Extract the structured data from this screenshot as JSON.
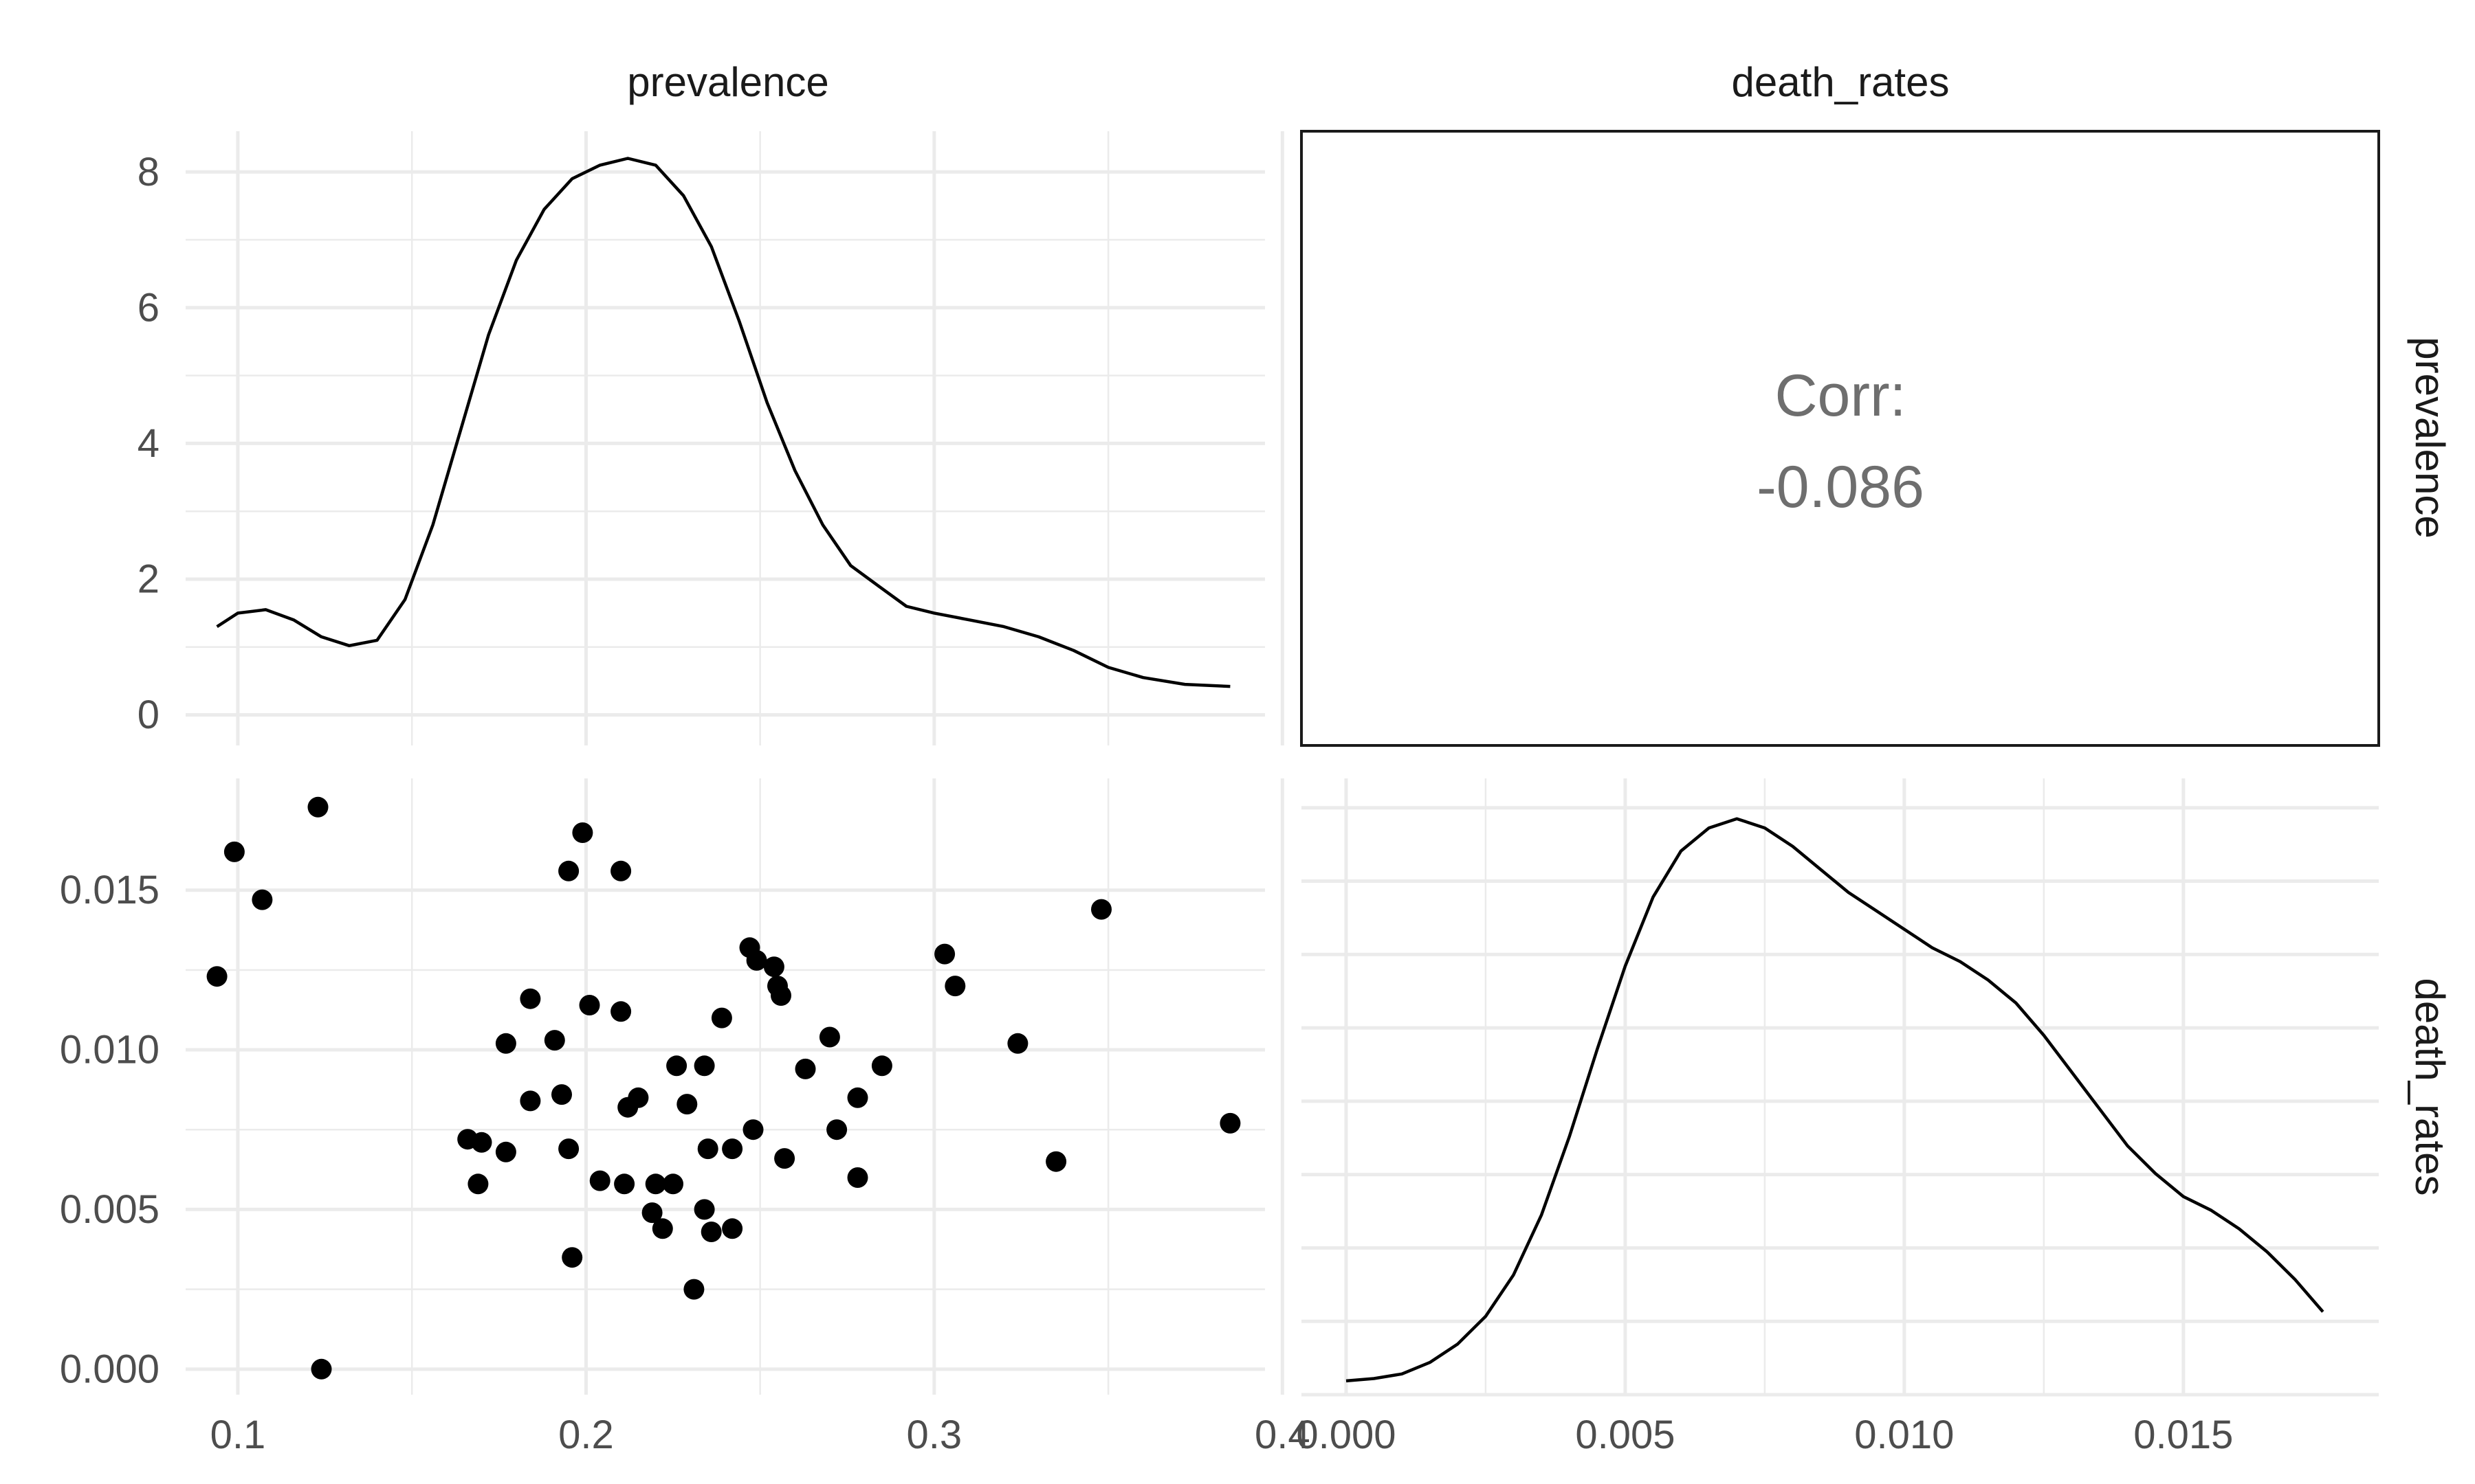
{
  "chart_data": {
    "type": "scatter-matrix",
    "variables": [
      "prevalence",
      "death_rates"
    ],
    "strips": {
      "top": [
        "prevalence",
        "death_rates"
      ],
      "right": [
        "prevalence",
        "death_rates"
      ]
    },
    "axes": {
      "prevalence": {
        "range": [
          0.085,
          0.395
        ],
        "ticks": [
          0.1,
          0.2,
          0.3,
          0.4
        ],
        "tick_labels": [
          "0.1",
          "0.2",
          "0.3",
          "0.4"
        ]
      },
      "death_rates": {
        "range": [
          -0.0008,
          0.0185
        ],
        "ticks": [
          0.0,
          0.005,
          0.01,
          0.015
        ],
        "tick_labels": [
          "0.000",
          "0.005",
          "0.010",
          "0.015"
        ]
      },
      "density_y": {
        "range": [
          -0.45,
          8.6
        ],
        "ticks": [
          0,
          2,
          4,
          6,
          8
        ],
        "tick_labels": [
          "0",
          "2",
          "4",
          "6",
          "8"
        ]
      }
    },
    "panels": [
      {
        "id": "prevalence-density",
        "type": "density",
        "variable": "prevalence",
        "x": [
          0.094,
          0.1,
          0.108,
          0.116,
          0.124,
          0.132,
          0.14,
          0.148,
          0.156,
          0.164,
          0.172,
          0.18,
          0.188,
          0.196,
          0.204,
          0.212,
          0.22,
          0.228,
          0.236,
          0.244,
          0.252,
          0.26,
          0.268,
          0.276,
          0.284,
          0.292,
          0.3,
          0.31,
          0.32,
          0.33,
          0.34,
          0.35,
          0.36,
          0.372,
          0.385
        ],
        "y": [
          1.3,
          1.5,
          1.55,
          1.4,
          1.15,
          1.02,
          1.1,
          1.7,
          2.8,
          4.2,
          5.6,
          6.7,
          7.45,
          7.9,
          8.1,
          8.2,
          8.1,
          7.65,
          6.9,
          5.8,
          4.6,
          3.6,
          2.8,
          2.2,
          1.9,
          1.6,
          1.5,
          1.4,
          1.3,
          1.15,
          0.95,
          0.7,
          0.55,
          0.45,
          0.42
        ]
      },
      {
        "id": "correlation",
        "type": "text",
        "label": "Corr:",
        "value": "-0.086"
      },
      {
        "id": "scatter",
        "type": "scatter",
        "x_var": "prevalence",
        "y_var": "death_rates",
        "points": [
          [
            0.123,
            0.0176
          ],
          [
            0.099,
            0.0162
          ],
          [
            0.107,
            0.0147
          ],
          [
            0.094,
            0.0123
          ],
          [
            0.124,
            0.0
          ],
          [
            0.199,
            0.0168
          ],
          [
            0.195,
            0.0156
          ],
          [
            0.21,
            0.0156
          ],
          [
            0.348,
            0.0144
          ],
          [
            0.247,
            0.0132
          ],
          [
            0.249,
            0.0128
          ],
          [
            0.254,
            0.0126
          ],
          [
            0.255,
            0.012
          ],
          [
            0.256,
            0.0117
          ],
          [
            0.303,
            0.013
          ],
          [
            0.306,
            0.012
          ],
          [
            0.184,
            0.0116
          ],
          [
            0.201,
            0.0114
          ],
          [
            0.21,
            0.0112
          ],
          [
            0.239,
            0.011
          ],
          [
            0.27,
            0.0104
          ],
          [
            0.191,
            0.0103
          ],
          [
            0.177,
            0.0102
          ],
          [
            0.324,
            0.0102
          ],
          [
            0.226,
            0.0095
          ],
          [
            0.234,
            0.0095
          ],
          [
            0.285,
            0.0095
          ],
          [
            0.263,
            0.0094
          ],
          [
            0.193,
            0.0086
          ],
          [
            0.278,
            0.0085
          ],
          [
            0.184,
            0.0084
          ],
          [
            0.215,
            0.0085
          ],
          [
            0.212,
            0.0082
          ],
          [
            0.229,
            0.0083
          ],
          [
            0.385,
            0.0077
          ],
          [
            0.248,
            0.0075
          ],
          [
            0.272,
            0.0075
          ],
          [
            0.166,
            0.0072
          ],
          [
            0.17,
            0.0071
          ],
          [
            0.177,
            0.0068
          ],
          [
            0.195,
            0.0069
          ],
          [
            0.235,
            0.0069
          ],
          [
            0.242,
            0.0069
          ],
          [
            0.257,
            0.0066
          ],
          [
            0.335,
            0.0065
          ],
          [
            0.169,
            0.0058
          ],
          [
            0.204,
            0.0059
          ],
          [
            0.211,
            0.0058
          ],
          [
            0.22,
            0.0058
          ],
          [
            0.225,
            0.0058
          ],
          [
            0.278,
            0.006
          ],
          [
            0.219,
            0.0049
          ],
          [
            0.234,
            0.005
          ],
          [
            0.222,
            0.0044
          ],
          [
            0.236,
            0.0043
          ],
          [
            0.242,
            0.0044
          ],
          [
            0.196,
            0.0035
          ],
          [
            0.231,
            0.0025
          ]
        ]
      },
      {
        "id": "death-rates-density",
        "type": "density",
        "variable": "death_rates",
        "x": [
          0.0,
          0.0005,
          0.001,
          0.0015,
          0.002,
          0.0025,
          0.003,
          0.0035,
          0.004,
          0.0045,
          0.005,
          0.0055,
          0.006,
          0.0065,
          0.007,
          0.0075,
          0.008,
          0.0085,
          0.009,
          0.0095,
          0.01,
          0.0105,
          0.011,
          0.0115,
          0.012,
          0.0125,
          0.013,
          0.0135,
          0.014,
          0.0145,
          0.015,
          0.0155,
          0.016,
          0.0165,
          0.017,
          0.0175
        ],
        "y": [
          3,
          3.5,
          4.5,
          7,
          11,
          17,
          26,
          39,
          56,
          75,
          93,
          108,
          118,
          123,
          125,
          123,
          119,
          114,
          109,
          105,
          101,
          97,
          94,
          90,
          85,
          78,
          70,
          62,
          54,
          48,
          43,
          40,
          36,
          31,
          25,
          18
        ]
      }
    ]
  }
}
